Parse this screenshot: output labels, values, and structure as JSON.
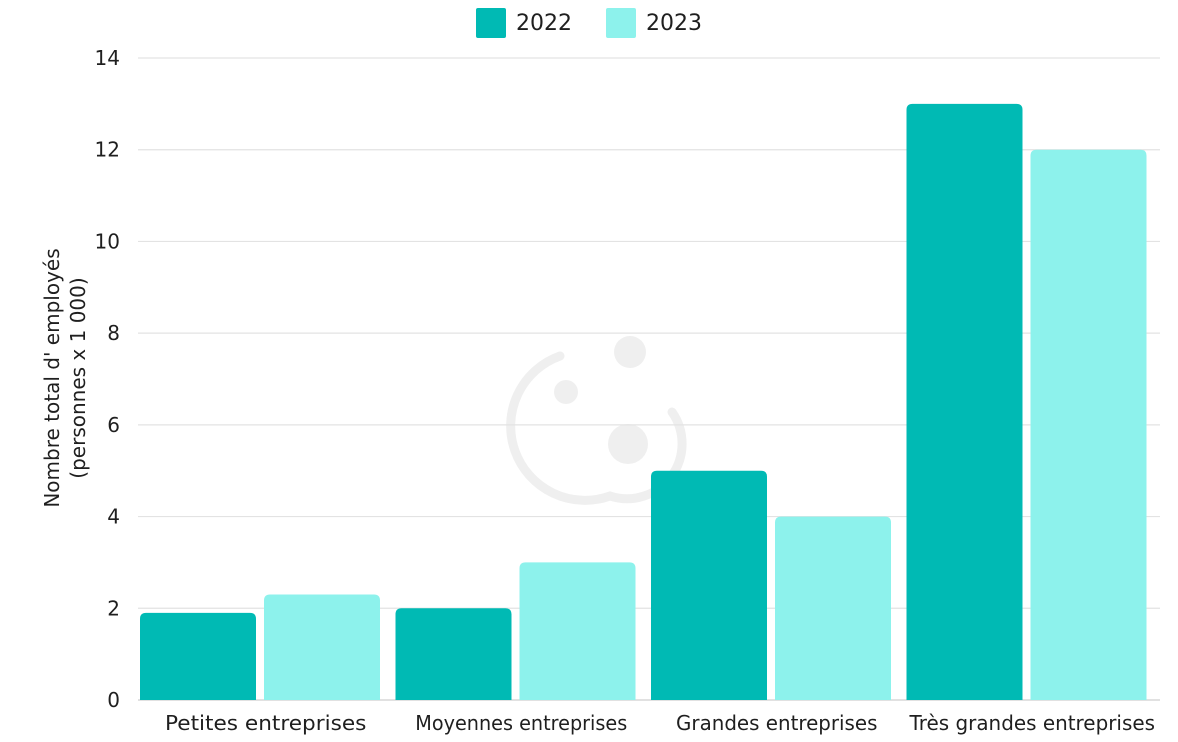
{
  "chart_data": {
    "type": "bar",
    "categories": [
      "Petites entreprises",
      "Moyennes entreprises",
      "Grandes entreprises",
      "Très grandes entreprises"
    ],
    "series": [
      {
        "name": "2022",
        "values": [
          1.9,
          2.0,
          5.0,
          13.0
        ],
        "color": "#00BAB4"
      },
      {
        "name": "2023",
        "values": [
          2.3,
          3.0,
          4.0,
          12.0
        ],
        "color": "#8DF2EC"
      }
    ],
    "title": "",
    "xlabel": "",
    "ylabel_line1": "Nombre total d' employés",
    "ylabel_line2": "(personnes x 1 000)",
    "ylim": [
      0,
      14
    ],
    "yticks": [
      0,
      2,
      4,
      6,
      8,
      10,
      12,
      14
    ],
    "grid": true,
    "legend_position": "top-center"
  },
  "colors": {
    "grid": "#e3e3e3",
    "axis": "#cfcfcf",
    "watermark": "#efefef"
  }
}
